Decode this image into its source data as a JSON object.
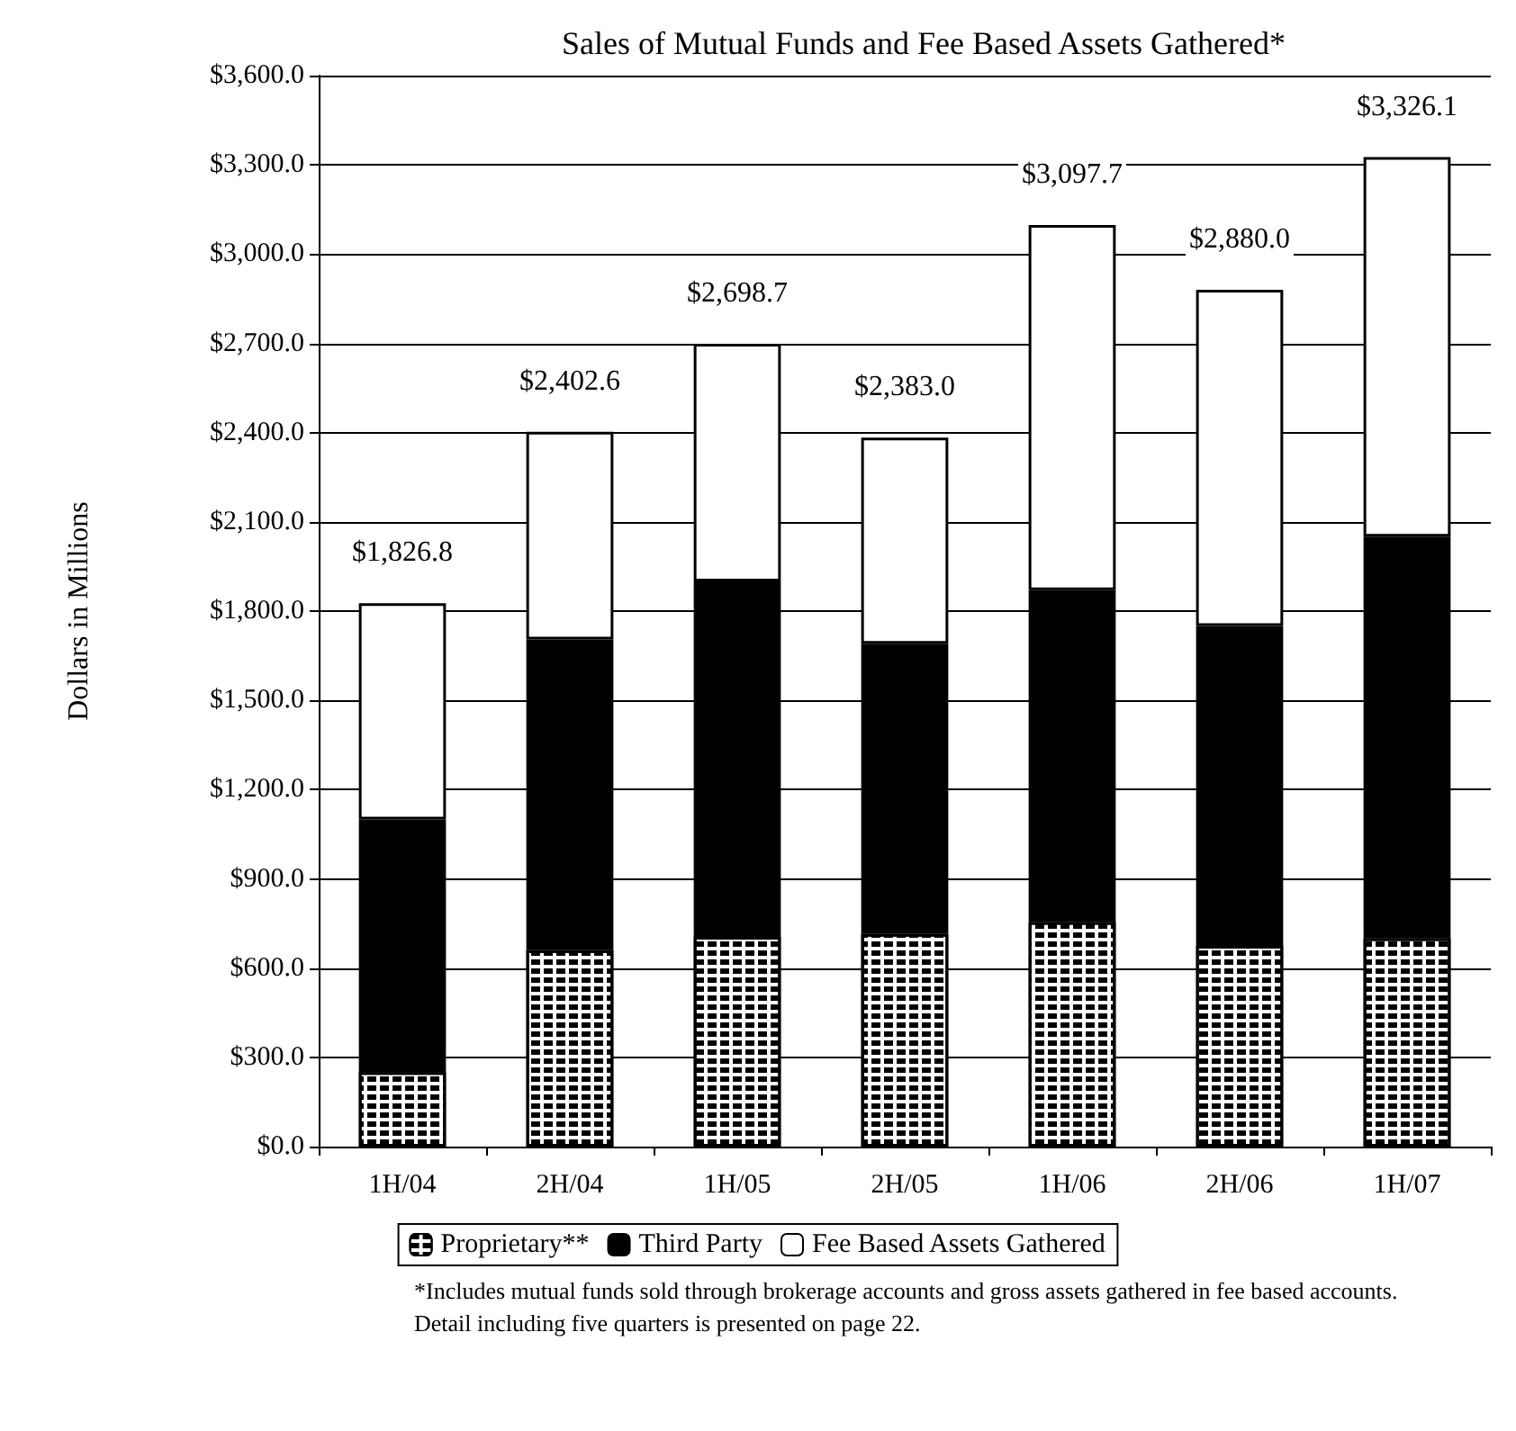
{
  "chart_data": {
    "type": "bar",
    "title": "Sales of Mutual Funds and Fee Based Assets Gathered*",
    "ylabel": "Dollars in Millions",
    "categories": [
      "1H/04",
      "2H/04",
      "1H/05",
      "2H/05",
      "1H/06",
      "2H/06",
      "1H/07"
    ],
    "stacked": true,
    "series": [
      {
        "name": "Proprietary**",
        "color": "#ffffff",
        "values": [
          250,
          660,
          705,
          715,
          755,
          675,
          700
        ]
      },
      {
        "name": "Third Party",
        "color": "#000000",
        "values": [
          850,
          1045,
          1195,
          975,
          1115,
          1075,
          1350
        ]
      },
      {
        "name": "Fee Based Assets Gathered",
        "color": "#ffffff",
        "values": [
          726.8,
          697.6,
          798.7,
          693.0,
          1227.7,
          1130.0,
          1276.1
        ]
      }
    ],
    "totals": [
      "$1,826.8",
      "$2,402.6",
      "$2,698.7",
      "$2,383.0",
      "$3,097.7",
      "$2,880.0",
      "$3,326.1"
    ],
    "ylim": [
      0,
      3600
    ],
    "yticks": [
      {
        "value": 0,
        "label": "$0.0"
      },
      {
        "value": 300,
        "label": "$300.0"
      },
      {
        "value": 600,
        "label": "$600.0"
      },
      {
        "value": 900,
        "label": "$900.0"
      },
      {
        "value": 1200,
        "label": "$1,200.0"
      },
      {
        "value": 1500,
        "label": "$1,500.0"
      },
      {
        "value": 1800,
        "label": "$1,800.0"
      },
      {
        "value": 2100,
        "label": "$2,100.0"
      },
      {
        "value": 2400,
        "label": "$2,400.0"
      },
      {
        "value": 2700,
        "label": "$2,700.0"
      },
      {
        "value": 3000,
        "label": "$3,000.0"
      },
      {
        "value": 3300,
        "label": "$3,300.0"
      },
      {
        "value": 3600,
        "label": "$3,600.0"
      }
    ],
    "grid": "y",
    "legend": "bottom",
    "annotations": [
      "*Includes mutual funds sold through brokerage accounts and gross assets gathered in fee based accounts. Detail including five quarters is presented on page 22."
    ]
  }
}
